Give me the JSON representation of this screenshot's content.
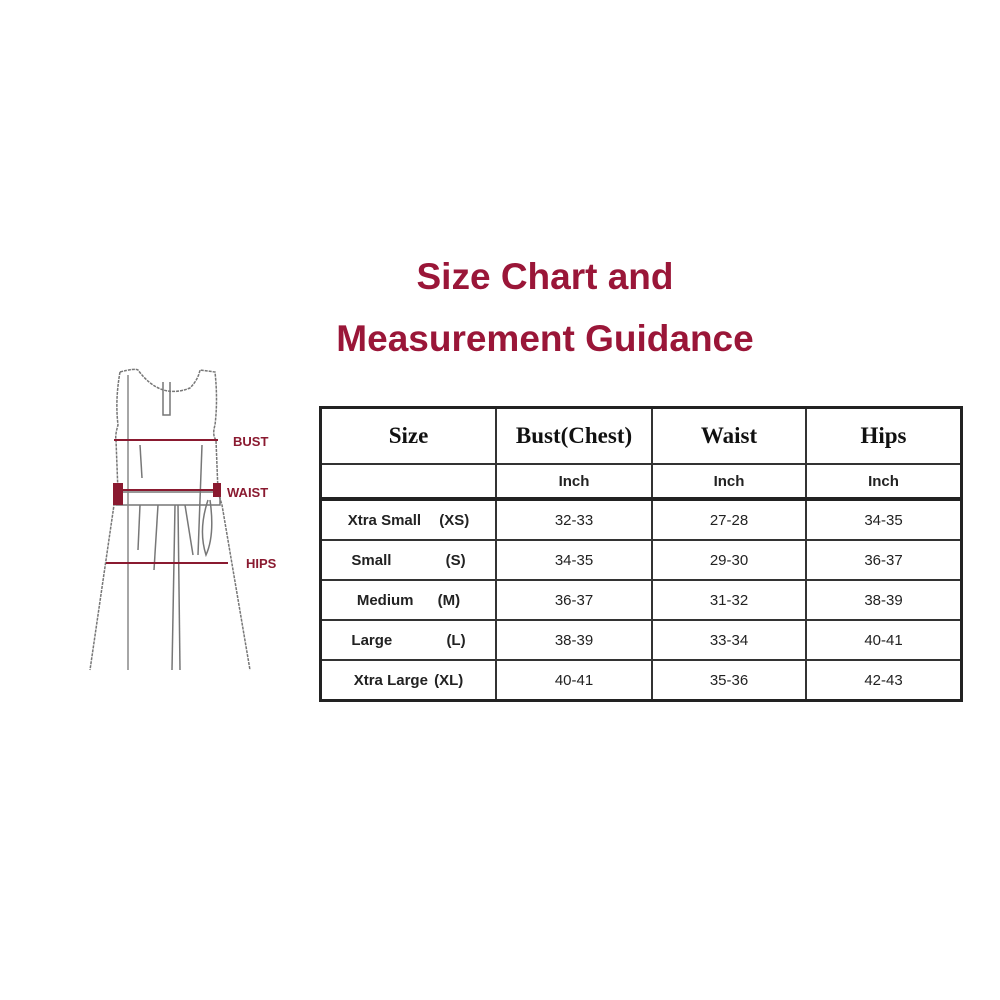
{
  "title": {
    "line1": "Size Chart and",
    "line2": "Measurement Guidance"
  },
  "illustration": {
    "labels": {
      "bust": "BUST",
      "waist": "WAIST",
      "hips": "HIPS"
    }
  },
  "table": {
    "headers": [
      "Size",
      "Bust(Chest)",
      "Waist",
      "Hips"
    ],
    "units": [
      "",
      "Inch",
      "Inch",
      "Inch"
    ],
    "rows": [
      {
        "name": "Xtra Small",
        "code": "(XS)",
        "bust": "32-33",
        "waist": "27-28",
        "hips": "34-35"
      },
      {
        "name": "Small",
        "code": "(S)",
        "bust": "34-35",
        "waist": "29-30",
        "hips": "36-37"
      },
      {
        "name": "Medium",
        "code": "(M)",
        "bust": "36-37",
        "waist": "31-32",
        "hips": "38-39"
      },
      {
        "name": "Large",
        "code": "(L)",
        "bust": "38-39",
        "waist": "33-34",
        "hips": "40-41"
      },
      {
        "name": "Xtra Large",
        "code": "(XL)",
        "bust": "40-41",
        "waist": "35-36",
        "hips": "42-43"
      }
    ]
  },
  "colors": {
    "title": "#9a1638",
    "measure_marks": "#8a1a30"
  }
}
